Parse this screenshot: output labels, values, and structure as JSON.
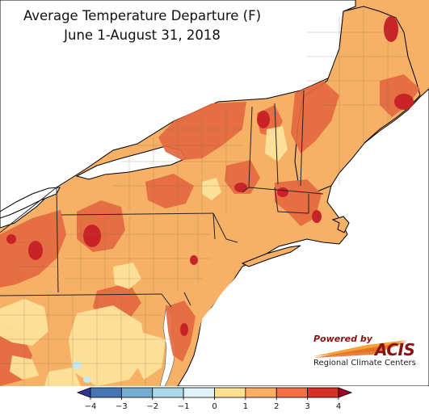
{
  "map": {
    "title": "Average Temperature Departure (F)",
    "subtitle": "June 1-August 31, 2018",
    "region": "Northeast United States",
    "units": "F",
    "background_color": "#f6b166",
    "water_color": "#ffffff"
  },
  "legend": {
    "tick_labels": [
      "−4",
      "−3",
      "−2",
      "−1",
      "0",
      "1",
      "2",
      "3",
      "4"
    ],
    "bins": [
      {
        "range": "< -4",
        "color": "#313695"
      },
      {
        "range": "-4 to -3",
        "color": "#4575b4"
      },
      {
        "range": "-3 to -2",
        "color": "#74add1"
      },
      {
        "range": "-2 to -1",
        "color": "#abd9e9"
      },
      {
        "range": "-1 to 0",
        "color": "#e0f3f8"
      },
      {
        "range": "0 to 1",
        "color": "#fee090"
      },
      {
        "range": "1 to 2",
        "color": "#fdae61"
      },
      {
        "range": "2 to 3",
        "color": "#f46d43"
      },
      {
        "range": "3 to 4",
        "color": "#d73027"
      },
      {
        "range": "> 4",
        "color": "#a50026"
      }
    ]
  },
  "logo": {
    "powered_by": "Powered by",
    "brand": "ACIS",
    "org": "Regional Climate Centers"
  }
}
